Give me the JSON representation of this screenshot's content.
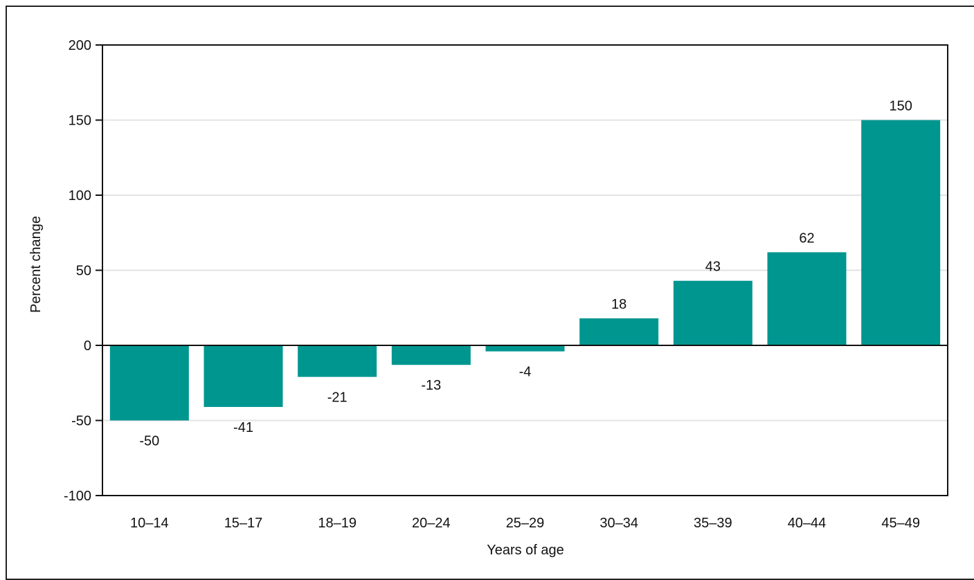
{
  "chart_data": {
    "type": "bar",
    "categories": [
      "10–14",
      "15–17",
      "18–19",
      "20–24",
      "25–29",
      "30–34",
      "35–39",
      "40–44",
      "45–49"
    ],
    "values": [
      -50,
      -41,
      -21,
      -13,
      -4,
      18,
      43,
      62,
      150
    ],
    "data_labels": [
      "-50",
      "-41",
      "-21",
      "-13",
      "-4",
      "18",
      "43",
      "62",
      "150"
    ],
    "xlabel": "Years of age",
    "ylabel": "Percent change",
    "ylim": [
      -100,
      200
    ],
    "yticks": [
      -100,
      -50,
      0,
      50,
      100,
      150,
      200
    ],
    "grid": true,
    "bar_color": "#009690",
    "grid_color": "#e3e3e3"
  }
}
